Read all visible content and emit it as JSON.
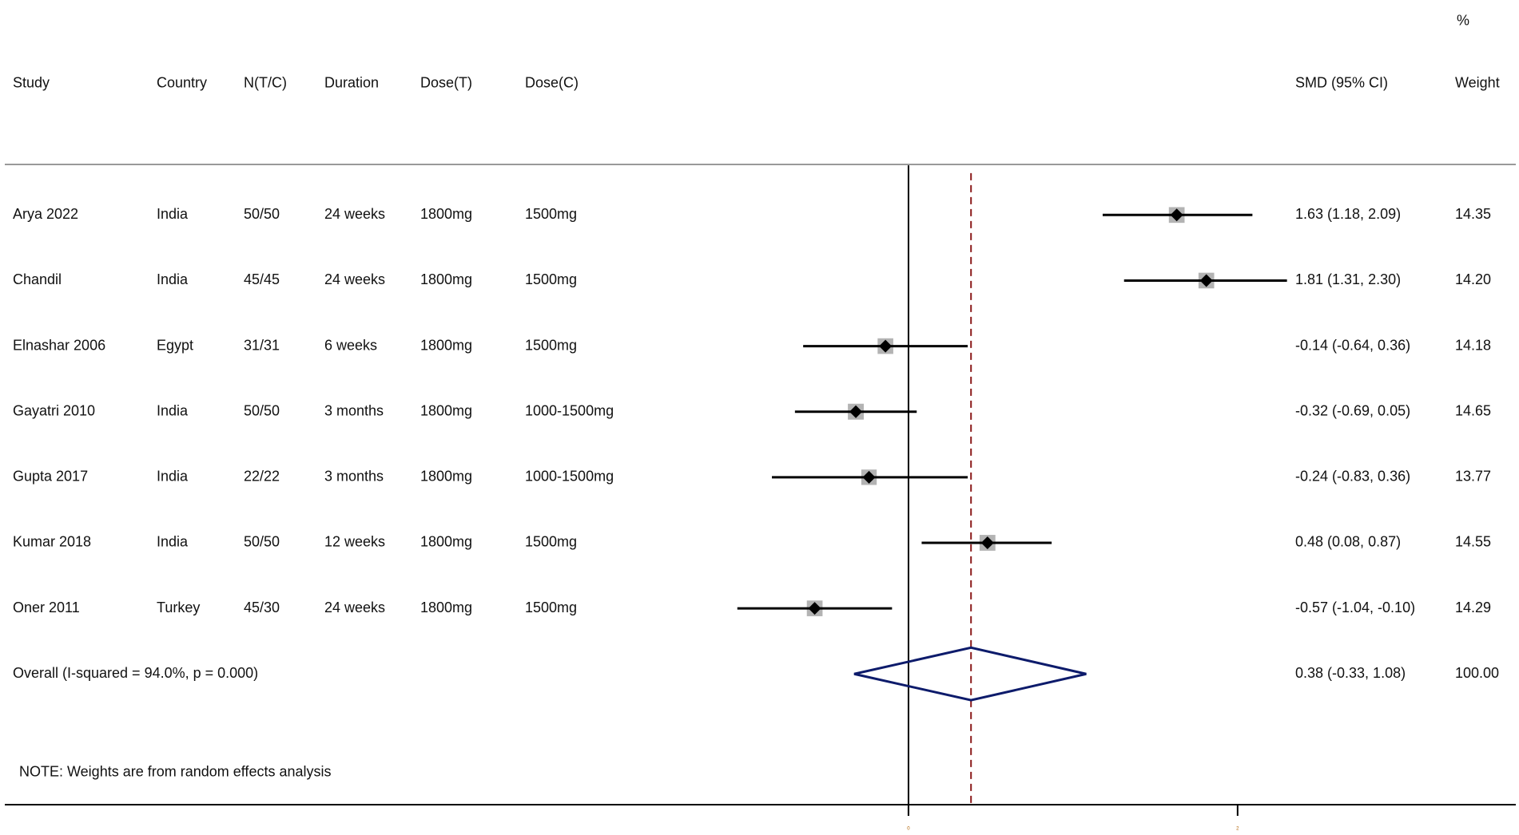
{
  "chart_data": {
    "type": "forest",
    "headers": {
      "study": "Study",
      "country": "Country",
      "n": "N(T/C)",
      "duration": "Duration",
      "dose_t": "Dose(T)",
      "dose_c": "Dose(C)",
      "ci_label": "SMD (95% CI)",
      "weight_pct": "%",
      "weight_label": "Weight"
    },
    "studies": [
      {
        "study": "Arya 2022",
        "country": "India",
        "n": "50/50",
        "duration": "24 weeks",
        "dose_t": "1800mg",
        "dose_c": "1500mg",
        "effect": 1.63,
        "lower": 1.18,
        "upper": 2.09,
        "ci_label": "1.63 (1.18, 2.09)",
        "weight": 14.35,
        "weight_label": "14.35"
      },
      {
        "study": "Chandil",
        "country": "India",
        "n": "45/45",
        "duration": "24 weeks",
        "dose_t": "1800mg",
        "dose_c": "1500mg",
        "effect": 1.81,
        "lower": 1.31,
        "upper": 2.3,
        "ci_label": "1.81 (1.31, 2.30)",
        "weight": 14.2,
        "weight_label": "14.20"
      },
      {
        "study": "Elnashar 2006",
        "country": "Egypt",
        "n": "31/31",
        "duration": "6 weeks",
        "dose_t": "1800mg",
        "dose_c": "1500mg",
        "effect": -0.14,
        "lower": -0.64,
        "upper": 0.36,
        "ci_label": "-0.14 (-0.64, 0.36)",
        "weight": 14.18,
        "weight_label": "14.18"
      },
      {
        "study": "Gayatri 2010",
        "country": "India",
        "n": "50/50",
        "duration": "3 months",
        "dose_t": "1800mg",
        "dose_c": "1000-1500mg",
        "effect": -0.32,
        "lower": -0.69,
        "upper": 0.05,
        "ci_label": "-0.32 (-0.69, 0.05)",
        "weight": 14.65,
        "weight_label": "14.65"
      },
      {
        "study": "Gupta 2017",
        "country": "India",
        "n": "22/22",
        "duration": "3 months",
        "dose_t": "1800mg",
        "dose_c": "1000-1500mg",
        "effect": -0.24,
        "lower": -0.83,
        "upper": 0.36,
        "ci_label": "-0.24 (-0.83, 0.36)",
        "weight": 13.77,
        "weight_label": "13.77"
      },
      {
        "study": "Kumar 2018",
        "country": "India",
        "n": "50/50",
        "duration": "12 weeks",
        "dose_t": "1800mg",
        "dose_c": "1500mg",
        "effect": 0.48,
        "lower": 0.08,
        "upper": 0.87,
        "ci_label": "0.48 (0.08, 0.87)",
        "weight": 14.55,
        "weight_label": "14.55"
      },
      {
        "study": "Oner 2011",
        "country": "Turkey",
        "n": "45/30",
        "duration": "24 weeks",
        "dose_t": "1800mg",
        "dose_c": "1500mg",
        "effect": -0.57,
        "lower": -1.04,
        "upper": -0.1,
        "ci_label": "-0.57 (-1.04, -0.10)",
        "weight": 14.29,
        "weight_label": "14.29"
      }
    ],
    "overall": {
      "study": "Overall  (I-squared = 94.0%, p = 0.000)",
      "effect": 0.38,
      "lower": -0.33,
      "upper": 1.08,
      "ci_label": "0.38 (-0.33, 1.08)",
      "weight": 100,
      "weight_label": "100.00"
    },
    "note": "NOTE: Weights are from random effects analysis",
    "xlim": [
      -1.3,
      2.3
    ],
    "xticks": [
      0,
      2
    ],
    "ci_color": "#000000",
    "box_color": "#b3b3b3",
    "diamond_color": "#0d1b6b",
    "ref_color": "#8b1a1a"
  }
}
